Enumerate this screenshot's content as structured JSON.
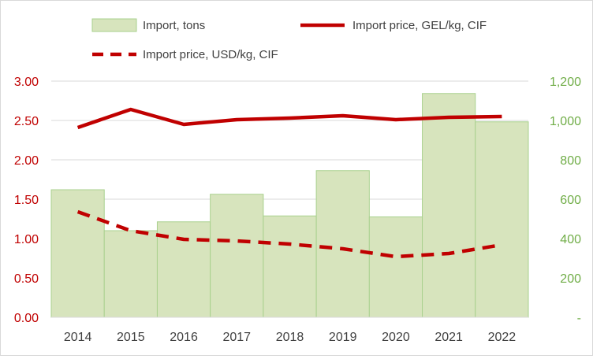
{
  "chart_data": {
    "type": "bar",
    "title": "",
    "xlabel": "",
    "categories": [
      "2014",
      "2015",
      "2016",
      "2017",
      "2018",
      "2019",
      "2020",
      "2021",
      "2022"
    ],
    "y_left": {
      "label": "",
      "range": [
        0,
        3
      ],
      "ticks": [
        0,
        0.5,
        1,
        1.5,
        2,
        2.5,
        3
      ],
      "tick_labels": [
        "0.00",
        "0.50",
        "1.00",
        "1.50",
        "2.00",
        "2.50",
        "3.00"
      ],
      "tick_color": "#c00000"
    },
    "y_right": {
      "label": "",
      "range": [
        0,
        1200
      ],
      "ticks": [
        0,
        200,
        400,
        600,
        800,
        1000,
        1200
      ],
      "tick_labels": [
        "-",
        "200",
        "400",
        "600",
        "800",
        "1,000",
        "1,200"
      ],
      "tick_color": "#70ad47"
    },
    "grid": "horizontal",
    "legend_position": "top",
    "series": [
      {
        "name": "Import, tons",
        "kind": "bar",
        "axis": "right",
        "color": "#d7e4bd",
        "edge_color": "#a9d18e",
        "values": [
          648,
          440,
          485,
          625,
          515,
          745,
          510,
          1137,
          993
        ]
      },
      {
        "name": "Import price, GEL/kg, CIF",
        "kind": "line",
        "style": "solid",
        "axis": "left",
        "color": "#c00000",
        "values": [
          2.41,
          2.64,
          2.45,
          2.51,
          2.53,
          2.56,
          2.51,
          2.54,
          2.55
        ]
      },
      {
        "name": "Import price, USD/kg, CIF",
        "kind": "line",
        "style": "dashed",
        "axis": "left",
        "color": "#c00000",
        "values": [
          1.34,
          1.1,
          0.99,
          0.97,
          0.93,
          0.87,
          0.77,
          0.81,
          0.92
        ]
      }
    ]
  }
}
